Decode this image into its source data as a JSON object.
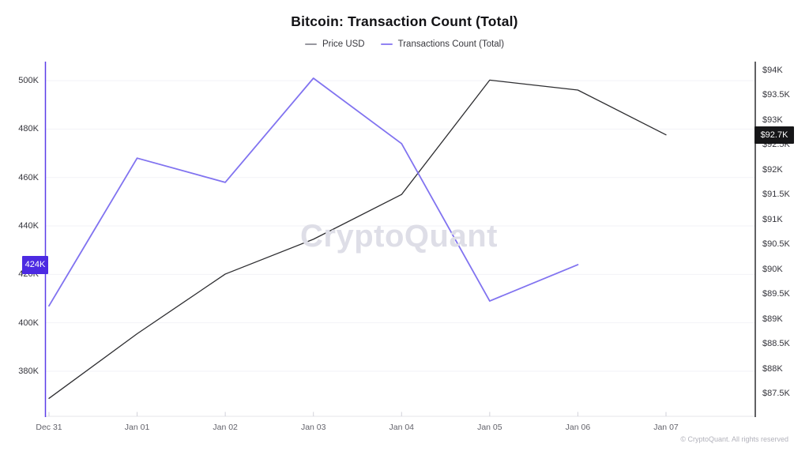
{
  "header": {
    "title": "Bitcoin: Transaction Count (Total)"
  },
  "legend": [
    {
      "label": "Price USD",
      "swatch_color": "#97979f"
    },
    {
      "label": "Transactions Count (Total)",
      "swatch_color": "#9183f2"
    }
  ],
  "chart_data": {
    "type": "line",
    "title": "Bitcoin: Transaction Count (Total)",
    "categories": [
      "Dec 31",
      "Jan 01",
      "Jan 02",
      "Jan 03",
      "Jan 04",
      "Jan 05",
      "Jan 06",
      "Jan 07"
    ],
    "series": [
      {
        "name": "Price USD",
        "axis": "right",
        "color": "#2d2d30",
        "stroke_width": 1.3,
        "unit": "thousand USD",
        "values": [
          87.4,
          88.7,
          89.9,
          90.6,
          91.5,
          93.8,
          93.6,
          92.7
        ]
      },
      {
        "name": "Transactions Count (Total)",
        "axis": "left",
        "color": "#8173f0",
        "stroke_width": 1.8,
        "unit": "thousand transactions",
        "values": [
          407,
          468,
          458,
          501,
          474,
          409,
          424,
          null
        ]
      }
    ],
    "left_axis": {
      "range": [
        361.4,
        507.2
      ],
      "tick_values": [
        500,
        480,
        460,
        440,
        420,
        400,
        380
      ],
      "tick_labels": [
        "500K",
        "480K",
        "460K",
        "440K",
        "420K",
        "400K",
        "380K"
      ],
      "line_color": "#5b3de8"
    },
    "right_axis": {
      "range": [
        87.04,
        94.14
      ],
      "tick_values": [
        94,
        93.5,
        93,
        92.5,
        92,
        91.5,
        91,
        90.5,
        90,
        89.5,
        89,
        88.5,
        88,
        87.5
      ],
      "tick_labels": [
        "$94K",
        "$93.5K",
        "$93K",
        "$92.5K",
        "$92K",
        "$91.5K",
        "$91K",
        "$90.5K",
        "$90K",
        "$89.5K",
        "$89K",
        "$88.5K",
        "$88K",
        "$87.5K"
      ],
      "line_color": "#2d2d30"
    },
    "badges": {
      "transactions_latest": {
        "label": "424K",
        "value": 424,
        "bg": "#4c2ae2",
        "text_color": "#ffffff"
      },
      "price_latest": {
        "label": "$92.7K",
        "value": 92.7,
        "bg": "#161618",
        "text_color": "#ffffff"
      }
    },
    "grid": "horizontal",
    "legend_position": "top",
    "watermark": "CryptoQuant",
    "copyright": "© CryptoQuant. All rights reserved"
  }
}
